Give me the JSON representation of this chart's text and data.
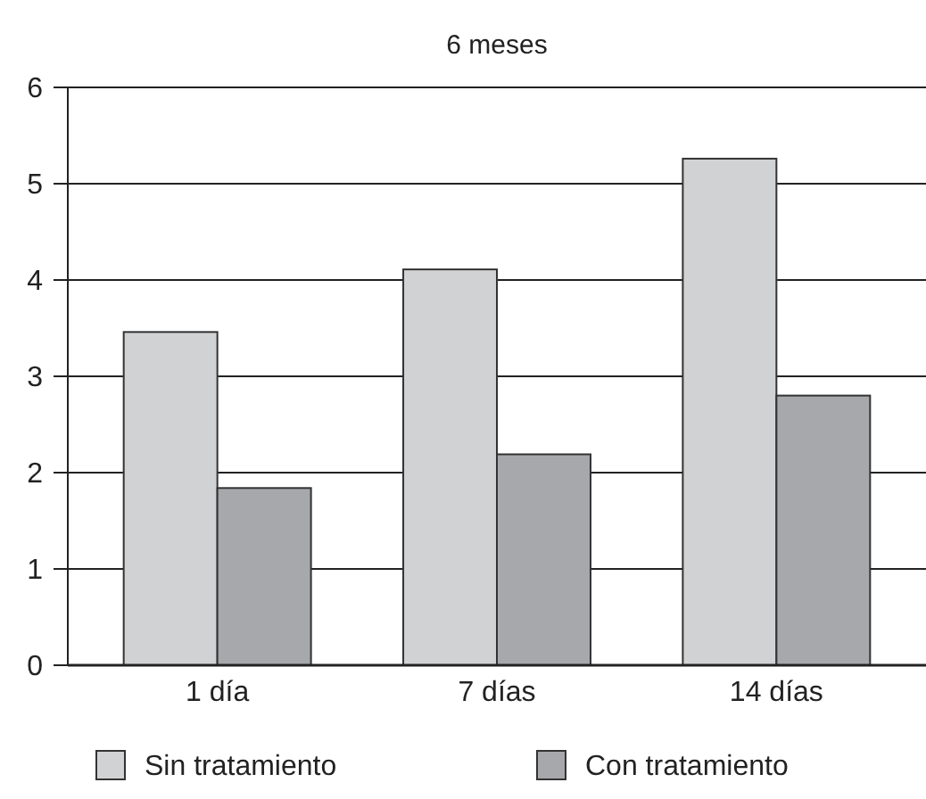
{
  "chart_data": {
    "type": "bar",
    "title": "6 meses",
    "categories": [
      "1 día",
      "7 días",
      "14 días"
    ],
    "series": [
      {
        "name": "Sin tratamiento",
        "color": "#d1d2d4",
        "values": [
          3.46,
          4.11,
          5.26
        ]
      },
      {
        "name": "Con tratamiento",
        "color": "#a7a8ab",
        "values": [
          1.84,
          2.19,
          2.8
        ]
      }
    ],
    "ylim": [
      0,
      6
    ],
    "yticks": [
      0,
      1,
      2,
      3,
      4,
      5,
      6
    ],
    "grid": "y",
    "legend": "bottom"
  }
}
